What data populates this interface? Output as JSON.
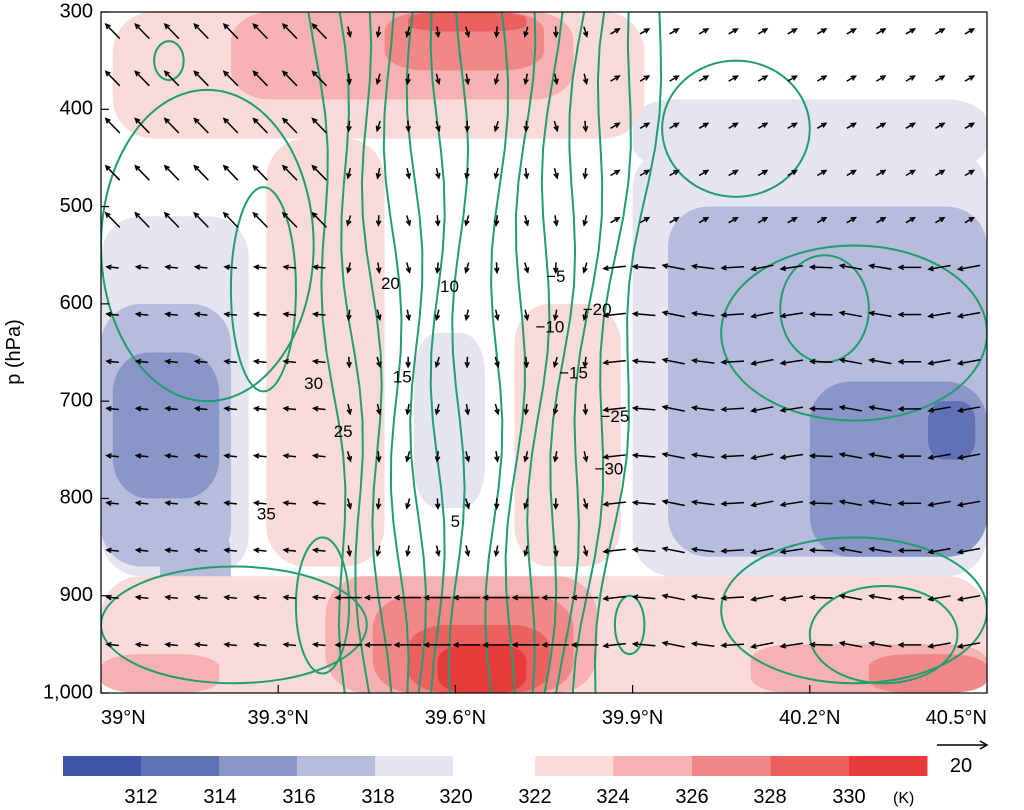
{
  "chart_data": {
    "type": "heatmap",
    "ylabel": "p (hPa)",
    "x_ticks": [
      "39°N",
      "39.3°N",
      "39.6°N",
      "39.9°N",
      "40.2°N",
      "40.5°N"
    ],
    "x_tick_values": [
      39.0,
      39.3,
      39.6,
      39.9,
      40.2,
      40.5
    ],
    "y_ticks": [
      "300",
      "400",
      "500",
      "600",
      "700",
      "800",
      "900",
      "1,000"
    ],
    "y_tick_values": [
      300,
      400,
      500,
      600,
      700,
      800,
      900,
      1000
    ],
    "xlim": [
      39.0,
      40.5
    ],
    "ylim": [
      1000,
      300
    ],
    "colorbar": {
      "unit": "(K)",
      "labels": [
        "312",
        "314",
        "316",
        "318",
        "320",
        "322",
        "324",
        "326",
        "328",
        "330"
      ],
      "cool_colors": [
        "#3f55a8",
        "#6071b6",
        "#8a95c8",
        "#b7bcdd",
        "#e4e5f1"
      ],
      "warm_colors": [
        "#fbdada",
        "#f6b2b2",
        "#f18888",
        "#ec6060",
        "#e73a3a"
      ]
    },
    "shading_regions": [
      {
        "level": 0,
        "x0": 39.0,
        "x1": 40.5,
        "p0": 300,
        "p1": 1000
      },
      {
        "level": -1,
        "x0": 39.0,
        "x1": 39.25,
        "p0": 510,
        "p1": 880
      },
      {
        "level": -2,
        "x0": 39.0,
        "x1": 39.22,
        "p0": 600,
        "p1": 870
      },
      {
        "level": -3,
        "x0": 39.02,
        "x1": 39.2,
        "p0": 650,
        "p1": 800
      },
      {
        "level": -2,
        "x0": 39.1,
        "x1": 39.22,
        "p0": 820,
        "p1": 940
      },
      {
        "level": -1,
        "x0": 39.53,
        "x1": 39.65,
        "p0": 630,
        "p1": 810
      },
      {
        "level": -1,
        "x0": 39.9,
        "x1": 40.5,
        "p0": 440,
        "p1": 880
      },
      {
        "level": -2,
        "x0": 39.96,
        "x1": 40.5,
        "p0": 500,
        "p1": 860
      },
      {
        "level": -3,
        "x0": 40.2,
        "x1": 40.5,
        "p0": 680,
        "p1": 860
      },
      {
        "level": -4,
        "x0": 40.4,
        "x1": 40.48,
        "p0": 700,
        "p1": 760
      },
      {
        "level": -1,
        "x0": 39.9,
        "x1": 40.5,
        "p0": 390,
        "p1": 460
      },
      {
        "level": 1,
        "x0": 39.02,
        "x1": 39.92,
        "p0": 300,
        "p1": 430
      },
      {
        "level": 2,
        "x0": 39.22,
        "x1": 39.8,
        "p0": 300,
        "p1": 390
      },
      {
        "level": 3,
        "x0": 39.48,
        "x1": 39.75,
        "p0": 300,
        "p1": 360
      },
      {
        "level": 4,
        "x0": 39.52,
        "x1": 39.72,
        "p0": 300,
        "p1": 320
      },
      {
        "level": 1,
        "x0": 39.28,
        "x1": 39.48,
        "p0": 430,
        "p1": 870
      },
      {
        "level": 1,
        "x0": 39.7,
        "x1": 39.88,
        "p0": 600,
        "p1": 870
      },
      {
        "level": 1,
        "x0": 39.0,
        "x1": 40.5,
        "p0": 880,
        "p1": 1000
      },
      {
        "level": 2,
        "x0": 39.38,
        "x1": 39.84,
        "p0": 880,
        "p1": 1000
      },
      {
        "level": 3,
        "x0": 39.46,
        "x1": 39.8,
        "p0": 900,
        "p1": 1000
      },
      {
        "level": 4,
        "x0": 39.52,
        "x1": 39.76,
        "p0": 930,
        "p1": 1000
      },
      {
        "level": 5,
        "x0": 39.57,
        "x1": 39.72,
        "p0": 950,
        "p1": 1000
      },
      {
        "level": 2,
        "x0": 39.0,
        "x1": 39.2,
        "p0": 960,
        "p1": 1000
      },
      {
        "level": 2,
        "x0": 40.1,
        "x1": 40.5,
        "p0": 950,
        "p1": 1000
      },
      {
        "level": 3,
        "x0": 40.3,
        "x1": 40.5,
        "p0": 960,
        "p1": 1000
      }
    ],
    "contour_labels": [
      {
        "text": "20",
        "x": 39.49,
        "p": 580
      },
      {
        "text": "10",
        "x": 39.59,
        "p": 583
      },
      {
        "text": "−5",
        "x": 39.77,
        "p": 573
      },
      {
        "text": "−20",
        "x": 39.84,
        "p": 607
      },
      {
        "text": "−10",
        "x": 39.76,
        "p": 625
      },
      {
        "text": "15",
        "x": 39.51,
        "p": 676
      },
      {
        "text": "−15",
        "x": 39.8,
        "p": 672
      },
      {
        "text": "30",
        "x": 39.36,
        "p": 683
      },
      {
        "text": "25",
        "x": 39.41,
        "p": 732
      },
      {
        "text": "−25",
        "x": 39.87,
        "p": 717
      },
      {
        "text": "−30",
        "x": 39.86,
        "p": 771
      },
      {
        "text": "35",
        "x": 39.28,
        "p": 817
      },
      {
        "text": "5",
        "x": 39.6,
        "p": 825
      }
    ],
    "vector_reference": {
      "label": "20",
      "magnitude": 20
    }
  }
}
